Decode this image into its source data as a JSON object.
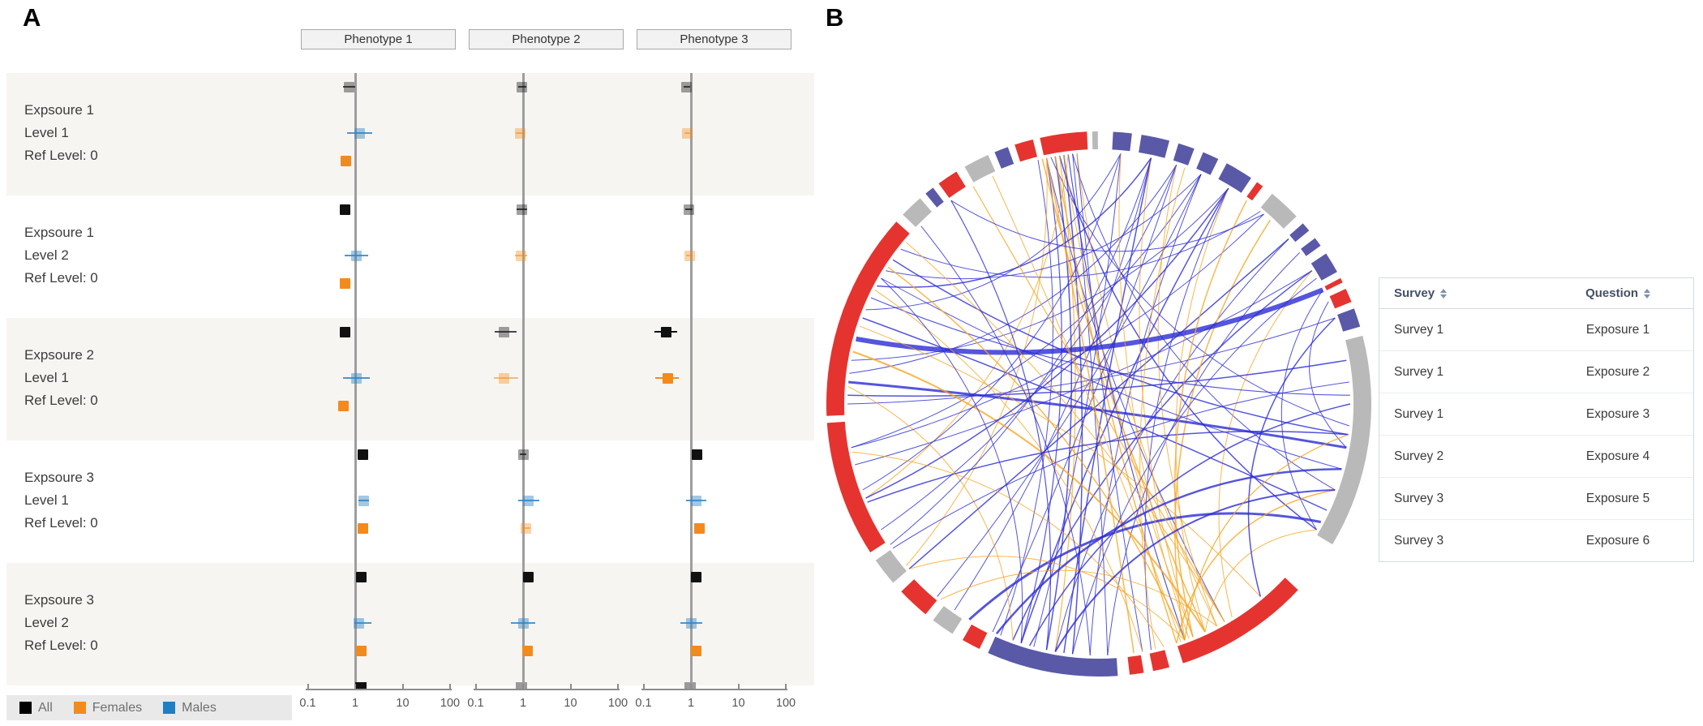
{
  "panelA": {
    "label": "A"
  },
  "panelB": {
    "label": "B"
  },
  "chart_data": [
    {
      "type": "forest",
      "title": "",
      "columns": [
        "Phenotype 1",
        "Phenotype 2",
        "Phenotype 3"
      ],
      "xscale": "log",
      "axis_ticks": [
        "0.1",
        "1",
        "10",
        "100"
      ],
      "xlim": [
        0.08,
        130
      ],
      "grid": false,
      "legend_position": "bottom-left",
      "legend": [
        {
          "label": "All",
          "color": "#000000"
        },
        {
          "label": "Females",
          "color": "#f28b1d"
        },
        {
          "label": "Males",
          "color": "#1f7fc2"
        }
      ],
      "rows": [
        {
          "labels": [
            "Expsoure 1",
            "Level 1",
            "Ref Level: 0"
          ],
          "shaded": true,
          "estimates": [
            [
              {
                "group": "all",
                "faded": true,
                "or": 0.73,
                "lo": 0.55,
                "hi": 1.0
              },
              {
                "group": "males",
                "faded": false,
                "or": 1.26,
                "lo": 0.68,
                "hi": 2.3
              },
              {
                "group": "females",
                "faded": false,
                "or": 0.63,
                "lo": 0.5,
                "hi": 0.8
              }
            ],
            [
              {
                "group": "all",
                "faded": true,
                "or": 0.95,
                "lo": 0.78,
                "hi": 1.18
              },
              {
                "group": "females",
                "faded": true,
                "or": 0.88,
                "lo": 0.7,
                "hi": 1.1
              }
            ],
            [
              {
                "group": "all",
                "faded": true,
                "or": 0.82,
                "lo": 0.7,
                "hi": 0.95
              },
              {
                "group": "females",
                "faded": true,
                "or": 0.85,
                "lo": 0.72,
                "hi": 1.0
              }
            ]
          ]
        },
        {
          "labels": [
            "Expsoure 1",
            "Level 2",
            "Ref Level: 0"
          ],
          "shaded": false,
          "estimates": [
            [
              {
                "group": "all",
                "faded": false,
                "or": 0.62,
                "lo": 0.5,
                "hi": 0.78
              },
              {
                "group": "males",
                "faded": false,
                "or": 1.05,
                "lo": 0.6,
                "hi": 1.9
              },
              {
                "group": "females",
                "faded": false,
                "or": 0.6,
                "lo": 0.47,
                "hi": 0.77
              }
            ],
            [
              {
                "group": "all",
                "faded": true,
                "or": 0.93,
                "lo": 0.72,
                "hi": 1.2
              },
              {
                "group": "females",
                "faded": true,
                "or": 0.9,
                "lo": 0.68,
                "hi": 1.2
              }
            ],
            [
              {
                "group": "all",
                "faded": true,
                "or": 0.92,
                "lo": 0.75,
                "hi": 1.1
              },
              {
                "group": "females",
                "faded": true,
                "or": 0.93,
                "lo": 0.78,
                "hi": 1.1
              }
            ]
          ]
        },
        {
          "labels": [
            "Expsoure 2",
            "Level 1",
            "Ref Level: 0"
          ],
          "shaded": true,
          "estimates": [
            [
              {
                "group": "all",
                "faded": false,
                "or": 0.6,
                "lo": 0.48,
                "hi": 0.75
              },
              {
                "group": "males",
                "faded": false,
                "or": 1.05,
                "lo": 0.55,
                "hi": 2.0
              },
              {
                "group": "females",
                "faded": false,
                "or": 0.57,
                "lo": 0.44,
                "hi": 0.73
              }
            ],
            [
              {
                "group": "all",
                "faded": true,
                "or": 0.4,
                "lo": 0.25,
                "hi": 0.72
              },
              {
                "group": "females",
                "faded": true,
                "or": 0.4,
                "lo": 0.24,
                "hi": 0.8
              }
            ],
            [
              {
                "group": "all",
                "faded": false,
                "or": 0.3,
                "lo": 0.17,
                "hi": 0.52
              },
              {
                "group": "females",
                "faded": false,
                "or": 0.32,
                "lo": 0.18,
                "hi": 0.55
              }
            ]
          ]
        },
        {
          "labels": [
            "Expsoure 3",
            "Level 1",
            "Ref Level: 0"
          ],
          "shaded": false,
          "estimates": [
            [
              {
                "group": "all",
                "faded": false,
                "or": 1.48,
                "lo": 1.48,
                "hi": 1.48
              },
              {
                "group": "males",
                "faded": false,
                "or": 1.5,
                "lo": 1.15,
                "hi": 1.95
              },
              {
                "group": "females",
                "faded": false,
                "or": 1.45,
                "lo": 1.45,
                "hi": 1.45
              }
            ],
            [
              {
                "group": "all",
                "faded": true,
                "or": 1.0,
                "lo": 0.85,
                "hi": 1.18
              },
              {
                "group": "males",
                "faded": false,
                "or": 1.3,
                "lo": 0.78,
                "hi": 2.2
              },
              {
                "group": "females",
                "faded": true,
                "or": 1.15,
                "lo": 0.95,
                "hi": 1.4
              }
            ],
            [
              {
                "group": "all",
                "faded": false,
                "or": 1.35,
                "lo": 1.35,
                "hi": 1.35
              },
              {
                "group": "males",
                "faded": false,
                "or": 1.3,
                "lo": 0.8,
                "hi": 2.1
              },
              {
                "group": "females",
                "faded": false,
                "or": 1.5,
                "lo": 1.45,
                "hi": 1.55
              }
            ]
          ]
        },
        {
          "labels": [
            "Expsoure 3",
            "Level 2",
            "Ref Level: 0"
          ],
          "shaded": true,
          "estimates": [
            [
              {
                "group": "all",
                "faded": false,
                "or": 1.35,
                "lo": 1.35,
                "hi": 1.35
              },
              {
                "group": "males",
                "faded": false,
                "or": 1.18,
                "lo": 0.95,
                "hi": 2.2
              },
              {
                "group": "females",
                "faded": false,
                "or": 1.32,
                "lo": 1.28,
                "hi": 1.38
              }
            ],
            [
              {
                "group": "all",
                "faded": false,
                "or": 1.27,
                "lo": 1.27,
                "hi": 1.27
              },
              {
                "group": "males",
                "faded": false,
                "or": 1.0,
                "lo": 0.55,
                "hi": 1.8
              },
              {
                "group": "females",
                "faded": false,
                "or": 1.25,
                "lo": 1.2,
                "hi": 1.3
              }
            ],
            [
              {
                "group": "all",
                "faded": false,
                "or": 1.3,
                "lo": 1.3,
                "hi": 1.3
              },
              {
                "group": "males",
                "faded": false,
                "or": 1.0,
                "lo": 0.6,
                "hi": 1.75
              },
              {
                "group": "females",
                "faded": false,
                "or": 1.3,
                "lo": 1.3,
                "hi": 1.3
              }
            ]
          ]
        }
      ],
      "partial_row": [
        {
          "col": 0,
          "group": "all",
          "faded": false,
          "or": 1.3
        },
        {
          "col": 1,
          "group": "all",
          "faded": true,
          "or": 0.92
        },
        {
          "col": 2,
          "group": "all",
          "faded": true,
          "or": 0.98
        }
      ]
    },
    {
      "type": "chord",
      "colors": {
        "red": "#e5342f",
        "navy": "#5a59a8",
        "gray": "#b9b9b9",
        "link_blue": "#2b2bd6",
        "link_orange": "#f6a623"
      },
      "segments": [
        [
          358.6,
          359.8,
          "gray"
        ],
        [
          3,
          7,
          "navy"
        ],
        [
          9,
          15,
          "navy"
        ],
        [
          17,
          20.5,
          "navy"
        ],
        [
          22.5,
          26,
          "navy"
        ],
        [
          28,
          34,
          "navy"
        ],
        [
          35.5,
          37,
          "red"
        ],
        [
          39.5,
          46.5,
          "gray"
        ],
        [
          48.5,
          50.5,
          "navy"
        ],
        [
          52.5,
          54.5,
          "navy"
        ],
        [
          56.5,
          61,
          "navy"
        ],
        [
          62.5,
          63.5,
          "red"
        ],
        [
          65,
          68,
          "red"
        ],
        [
          69.5,
          73.5,
          "navy"
        ],
        [
          75.5,
          121,
          "gray"
        ],
        [
          133,
          162,
          "red"
        ],
        [
          165,
          168.5,
          "red"
        ],
        [
          170.5,
          173.5,
          "red"
        ],
        [
          176,
          204,
          "navy"
        ],
        [
          206,
          210,
          "red"
        ],
        [
          212.5,
          217.5,
          "gray"
        ],
        [
          219.5,
          226.5,
          "red"
        ],
        [
          229,
          235,
          "gray"
        ],
        [
          237,
          266,
          "red"
        ],
        [
          267.5,
          312,
          "red"
        ],
        [
          314,
          319,
          "gray"
        ],
        [
          320.5,
          322.5,
          "navy"
        ],
        [
          324,
          328.5,
          "red"
        ],
        [
          330.5,
          336,
          "gray"
        ],
        [
          337.5,
          340.5,
          "navy"
        ],
        [
          342,
          346,
          "red"
        ],
        [
          347.5,
          357.5,
          "red"
        ]
      ],
      "links": [
        [
          -8,
          186,
          "b",
          1.5
        ],
        [
          -10,
          192,
          "b",
          1.5
        ],
        [
          -12,
          198,
          "b",
          1.2
        ],
        [
          -6,
          178,
          "b",
          1
        ],
        [
          -14,
          203,
          "b",
          1
        ],
        [
          -5,
          170,
          "b",
          1
        ],
        [
          -7,
          160,
          "b",
          1.2
        ],
        [
          -12,
          150,
          "b",
          1
        ],
        [
          -9,
          120,
          "b",
          1.5
        ],
        [
          -11,
          95,
          "b",
          1
        ],
        [
          -6,
          110,
          "b",
          1
        ],
        [
          -13,
          155,
          "o",
          1.5
        ],
        [
          -8,
          158,
          "o",
          1
        ],
        [
          -10,
          162,
          "o",
          1.5
        ],
        [
          -5,
          152,
          "o",
          1
        ],
        [
          -12,
          230,
          "o",
          1
        ],
        [
          -7,
          248,
          "o",
          1
        ],
        [
          -9,
          190,
          "o",
          1.2
        ],
        [
          5,
          195,
          "b",
          1
        ],
        [
          12,
          188,
          "b",
          1.5
        ],
        [
          12,
          215,
          "b",
          1
        ],
        [
          18,
          205,
          "b",
          1
        ],
        [
          24,
          182,
          "b",
          1
        ],
        [
          31,
          198,
          "b",
          1.5
        ],
        [
          31,
          168,
          "b",
          1
        ],
        [
          49,
          190,
          "b",
          1
        ],
        [
          53,
          178,
          "b",
          1
        ],
        [
          58,
          200,
          "b",
          1.5
        ],
        [
          5,
          250,
          "b",
          1
        ],
        [
          18,
          240,
          "b",
          1
        ],
        [
          24,
          260,
          "b",
          1
        ],
        [
          12,
          158,
          "o",
          1
        ],
        [
          31,
          155,
          "o",
          1
        ],
        [
          43,
          160,
          "o",
          1.5
        ],
        [
          58,
          148,
          "o",
          1
        ],
        [
          18,
          152,
          "o",
          1
        ],
        [
          -55,
          97,
          "b",
          1.5
        ],
        [
          -60,
          105,
          "b",
          1
        ],
        [
          -65,
          88,
          "b",
          1.2
        ],
        [
          -70,
          115,
          "b",
          1.5
        ],
        [
          -75,
          63,
          "b",
          6
        ],
        [
          -85,
          100,
          "b",
          3
        ],
        [
          -88,
          80,
          "b",
          1.5
        ],
        [
          -90,
          70,
          "b",
          1
        ],
        [
          -52,
          40,
          "b",
          1
        ],
        [
          -58,
          24,
          "b",
          1
        ],
        [
          -62,
          12,
          "b",
          1.5
        ],
        [
          -68,
          5,
          "b",
          1
        ],
        [
          -80,
          31,
          "b",
          1
        ],
        [
          -83,
          18,
          "b",
          1
        ],
        [
          -50,
          150,
          "o",
          1
        ],
        [
          -57,
          160,
          "o",
          1.5
        ],
        [
          -63,
          170,
          "o",
          1
        ],
        [
          -72,
          140,
          "o",
          1
        ],
        [
          -78,
          155,
          "o",
          2
        ],
        [
          -86,
          200,
          "o",
          1
        ],
        [
          -100,
          41,
          "b",
          1
        ],
        [
          -104,
          58,
          "b",
          1
        ],
        [
          -112,
          31,
          "b",
          1.5
        ],
        [
          -124,
          12,
          "b",
          1
        ],
        [
          -131,
          49,
          "b",
          1.5
        ],
        [
          -140,
          24,
          "b",
          1
        ],
        [
          -149,
          118,
          "b",
          3
        ],
        [
          -113,
          97,
          "b",
          1.5
        ],
        [
          -125,
          85,
          "b",
          1
        ],
        [
          -131,
          160,
          "o",
          1
        ],
        [
          -141,
          152,
          "o",
          1
        ],
        [
          -101,
          165,
          "o",
          1
        ],
        [
          158,
          36,
          "o",
          1.5
        ],
        [
          159,
          5,
          "o",
          1
        ],
        [
          161,
          -25,
          "o",
          1
        ],
        [
          160,
          97,
          "o",
          1
        ],
        [
          162,
          110,
          "o",
          1.5
        ],
        [
          155,
          120,
          "o",
          1
        ],
        [
          172,
          -12,
          "o",
          1.5
        ],
        [
          167,
          20,
          "o",
          1
        ],
        [
          150,
          -30,
          "o",
          1.2
        ],
        [
          190,
          110,
          "b",
          2
        ],
        [
          196,
          90,
          "b",
          1.5
        ],
        [
          186,
          60,
          "b",
          1
        ],
        [
          204,
          105,
          "b",
          2.5
        ],
        [
          192,
          -36,
          "b",
          1.2
        ],
        [
          198,
          -60,
          "b",
          1
        ],
        [
          182,
          -45,
          "b",
          1
        ],
        [
          63,
          120,
          "b",
          1
        ],
        [
          70,
          140,
          "b",
          1.5
        ],
        [
          66,
          100,
          "b",
          1
        ],
        [
          97,
          160,
          "o",
          1
        ],
        [
          41,
          -36,
          "b",
          1
        ]
      ]
    },
    {
      "type": "table",
      "columns": [
        "Survey",
        "Question"
      ],
      "rows": [
        [
          "Survey 1",
          "Exposure 1"
        ],
        [
          "Survey 1",
          "Exposure 2"
        ],
        [
          "Survey 1",
          "Exposure 3"
        ],
        [
          "Survey 2",
          "Exposure 4"
        ],
        [
          "Survey 3",
          "Exposure 5"
        ],
        [
          "Survey 3",
          "Exposure 6"
        ]
      ]
    }
  ]
}
